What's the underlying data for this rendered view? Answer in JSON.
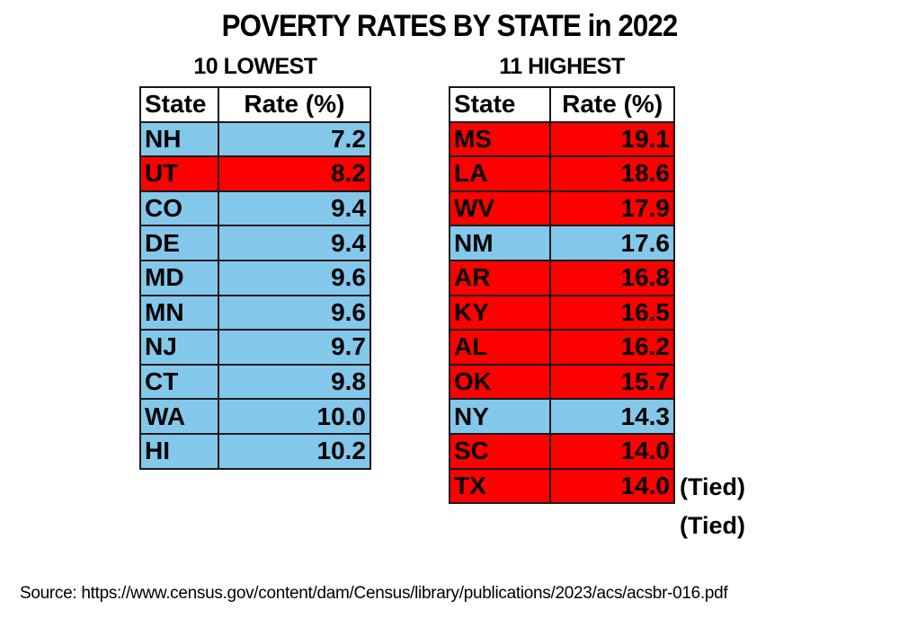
{
  "title": "POVERTY RATES BY STATE in 2022",
  "colors": {
    "above_us_average": "#fe0000",
    "below_us_average": "#83c8ea",
    "header": "#ffffff",
    "border": "#1a1a1a"
  },
  "chart_data": [
    {
      "type": "table",
      "title": "10 LOWEST",
      "columns": [
        "State",
        "Rate (%)"
      ],
      "rows": [
        {
          "state": "NH",
          "rate": "7.2",
          "color": "blue"
        },
        {
          "state": "UT",
          "rate": "8.2",
          "color": "red"
        },
        {
          "state": "CO",
          "rate": "9.4",
          "color": "blue"
        },
        {
          "state": "DE",
          "rate": "9.4",
          "color": "blue"
        },
        {
          "state": "MD",
          "rate": "9.6",
          "color": "blue"
        },
        {
          "state": "MN",
          "rate": "9.6",
          "color": "blue"
        },
        {
          "state": "NJ",
          "rate": "9.7",
          "color": "blue"
        },
        {
          "state": "CT",
          "rate": "9.8",
          "color": "blue"
        },
        {
          "state": "WA",
          "rate": "10.0",
          "color": "blue"
        },
        {
          "state": "HI",
          "rate": "10.2",
          "color": "blue"
        }
      ]
    },
    {
      "type": "table",
      "title": "11 HIGHEST",
      "columns": [
        "State",
        "Rate (%)"
      ],
      "rows": [
        {
          "state": "MS",
          "rate": "19.1",
          "color": "red"
        },
        {
          "state": "LA",
          "rate": "18.6",
          "color": "red"
        },
        {
          "state": "WV",
          "rate": "17.9",
          "color": "red"
        },
        {
          "state": "NM",
          "rate": "17.6",
          "color": "blue"
        },
        {
          "state": "AR",
          "rate": "16.8",
          "color": "red"
        },
        {
          "state": "KY",
          "rate": "16.5",
          "color": "red"
        },
        {
          "state": "AL",
          "rate": "16.2",
          "color": "red"
        },
        {
          "state": "OK",
          "rate": "15.7",
          "color": "red"
        },
        {
          "state": "NY",
          "rate": "14.3",
          "color": "blue"
        },
        {
          "state": "SC",
          "rate": "14.0",
          "color": "red",
          "note": "(Tied)"
        },
        {
          "state": "TX",
          "rate": "14.0",
          "color": "red",
          "note": "(Tied)"
        }
      ]
    }
  ],
  "source": "Source: https://www.census.gov/content/dam/Census/library/publications/2023/acs/acsbr-016.pdf"
}
